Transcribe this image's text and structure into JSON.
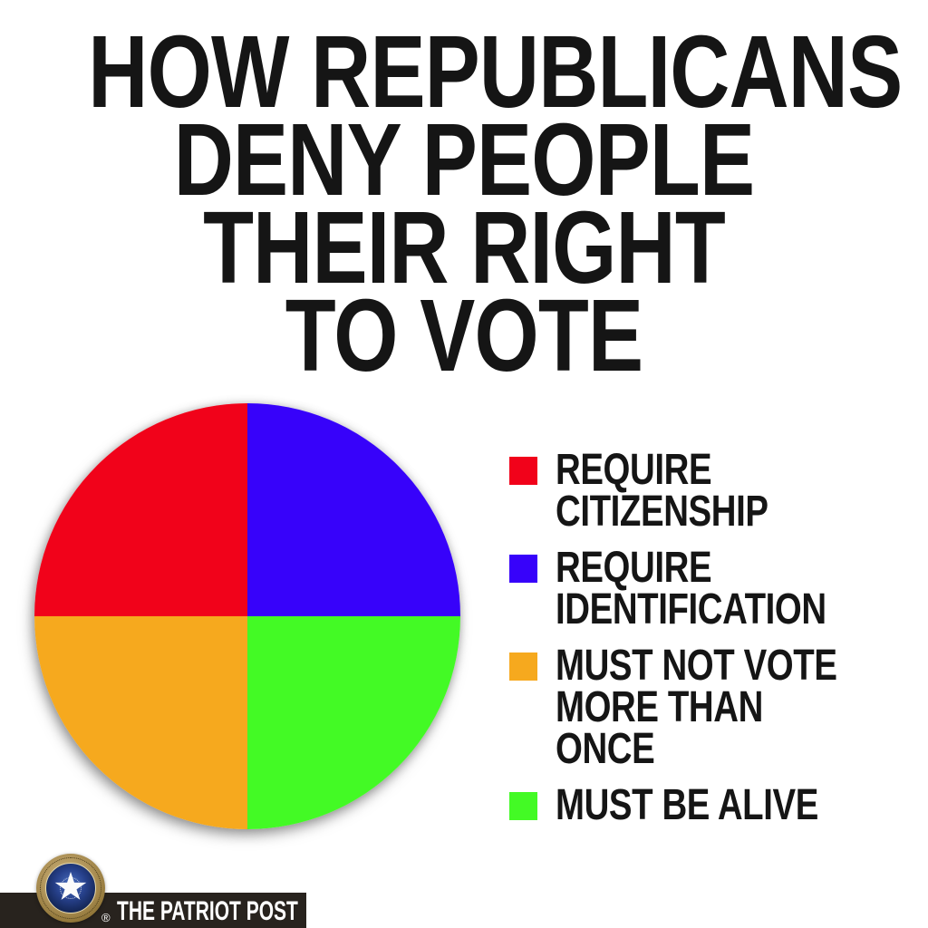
{
  "title": {
    "lines": [
      "HOW REPUBLICANS",
      "DENY PEOPLE",
      "THEIR RIGHT",
      "TO VOTE"
    ]
  },
  "chart_data": {
    "type": "pie",
    "title": "HOW REPUBLICANS DENY PEOPLE THEIR RIGHT TO VOTE",
    "labels": [
      "REQUIRE CITIZENSHIP",
      "REQUIRE IDENTIFICATION",
      "MUST NOT VOTE MORE THAN ONCE",
      "MUST BE ALIVE"
    ],
    "values": [
      25,
      25,
      25,
      25
    ],
    "colors": [
      "#f1021a",
      "#3702fa",
      "#f6a91e",
      "#43fa25"
    ],
    "slice_draw_order_clockwise_from_top": [
      1,
      3,
      2,
      0
    ],
    "legend_position": "right"
  },
  "legend": {
    "items": [
      {
        "label": "REQUIRE\nCITIZENSHIP"
      },
      {
        "label": "REQUIRE\nIDENTIFICATION"
      },
      {
        "label": "MUST NOT VOTE\nMORE THAN ONCE"
      },
      {
        "label": "MUST BE ALIVE"
      }
    ]
  },
  "footer": {
    "brand": "THE PATRIOT POST",
    "registered_mark": "®",
    "banner_color": "#28231e",
    "seal_gold": "#b0945a",
    "seal_navy": "#16295c",
    "star_color": "#ffffff"
  }
}
